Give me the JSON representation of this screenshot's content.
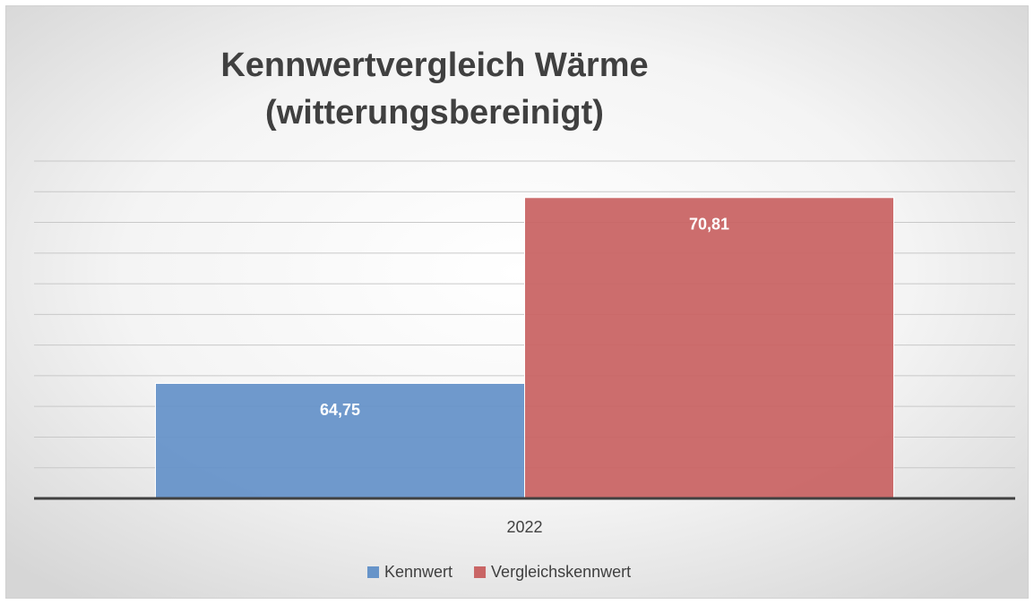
{
  "chart_data": {
    "type": "bar",
    "title": [
      "Kennwertvergleich Wärme",
      "(witterungsbereinigt)"
    ],
    "categories": [
      "2022"
    ],
    "series": [
      {
        "name": "Kennwert",
        "color": "#6794c9",
        "values": [
          64.75
        ],
        "value_labels": [
          "64,75"
        ]
      },
      {
        "name": "Vergleichskennwert",
        "color": "#c96565",
        "values": [
          70.81
        ],
        "value_labels": [
          "70,81"
        ]
      }
    ],
    "ylim": [
      61,
      72
    ],
    "yticks": [
      61,
      62,
      63,
      64,
      65,
      66,
      67,
      68,
      69,
      70,
      71,
      72
    ],
    "grid": true,
    "legend": "bottom"
  }
}
